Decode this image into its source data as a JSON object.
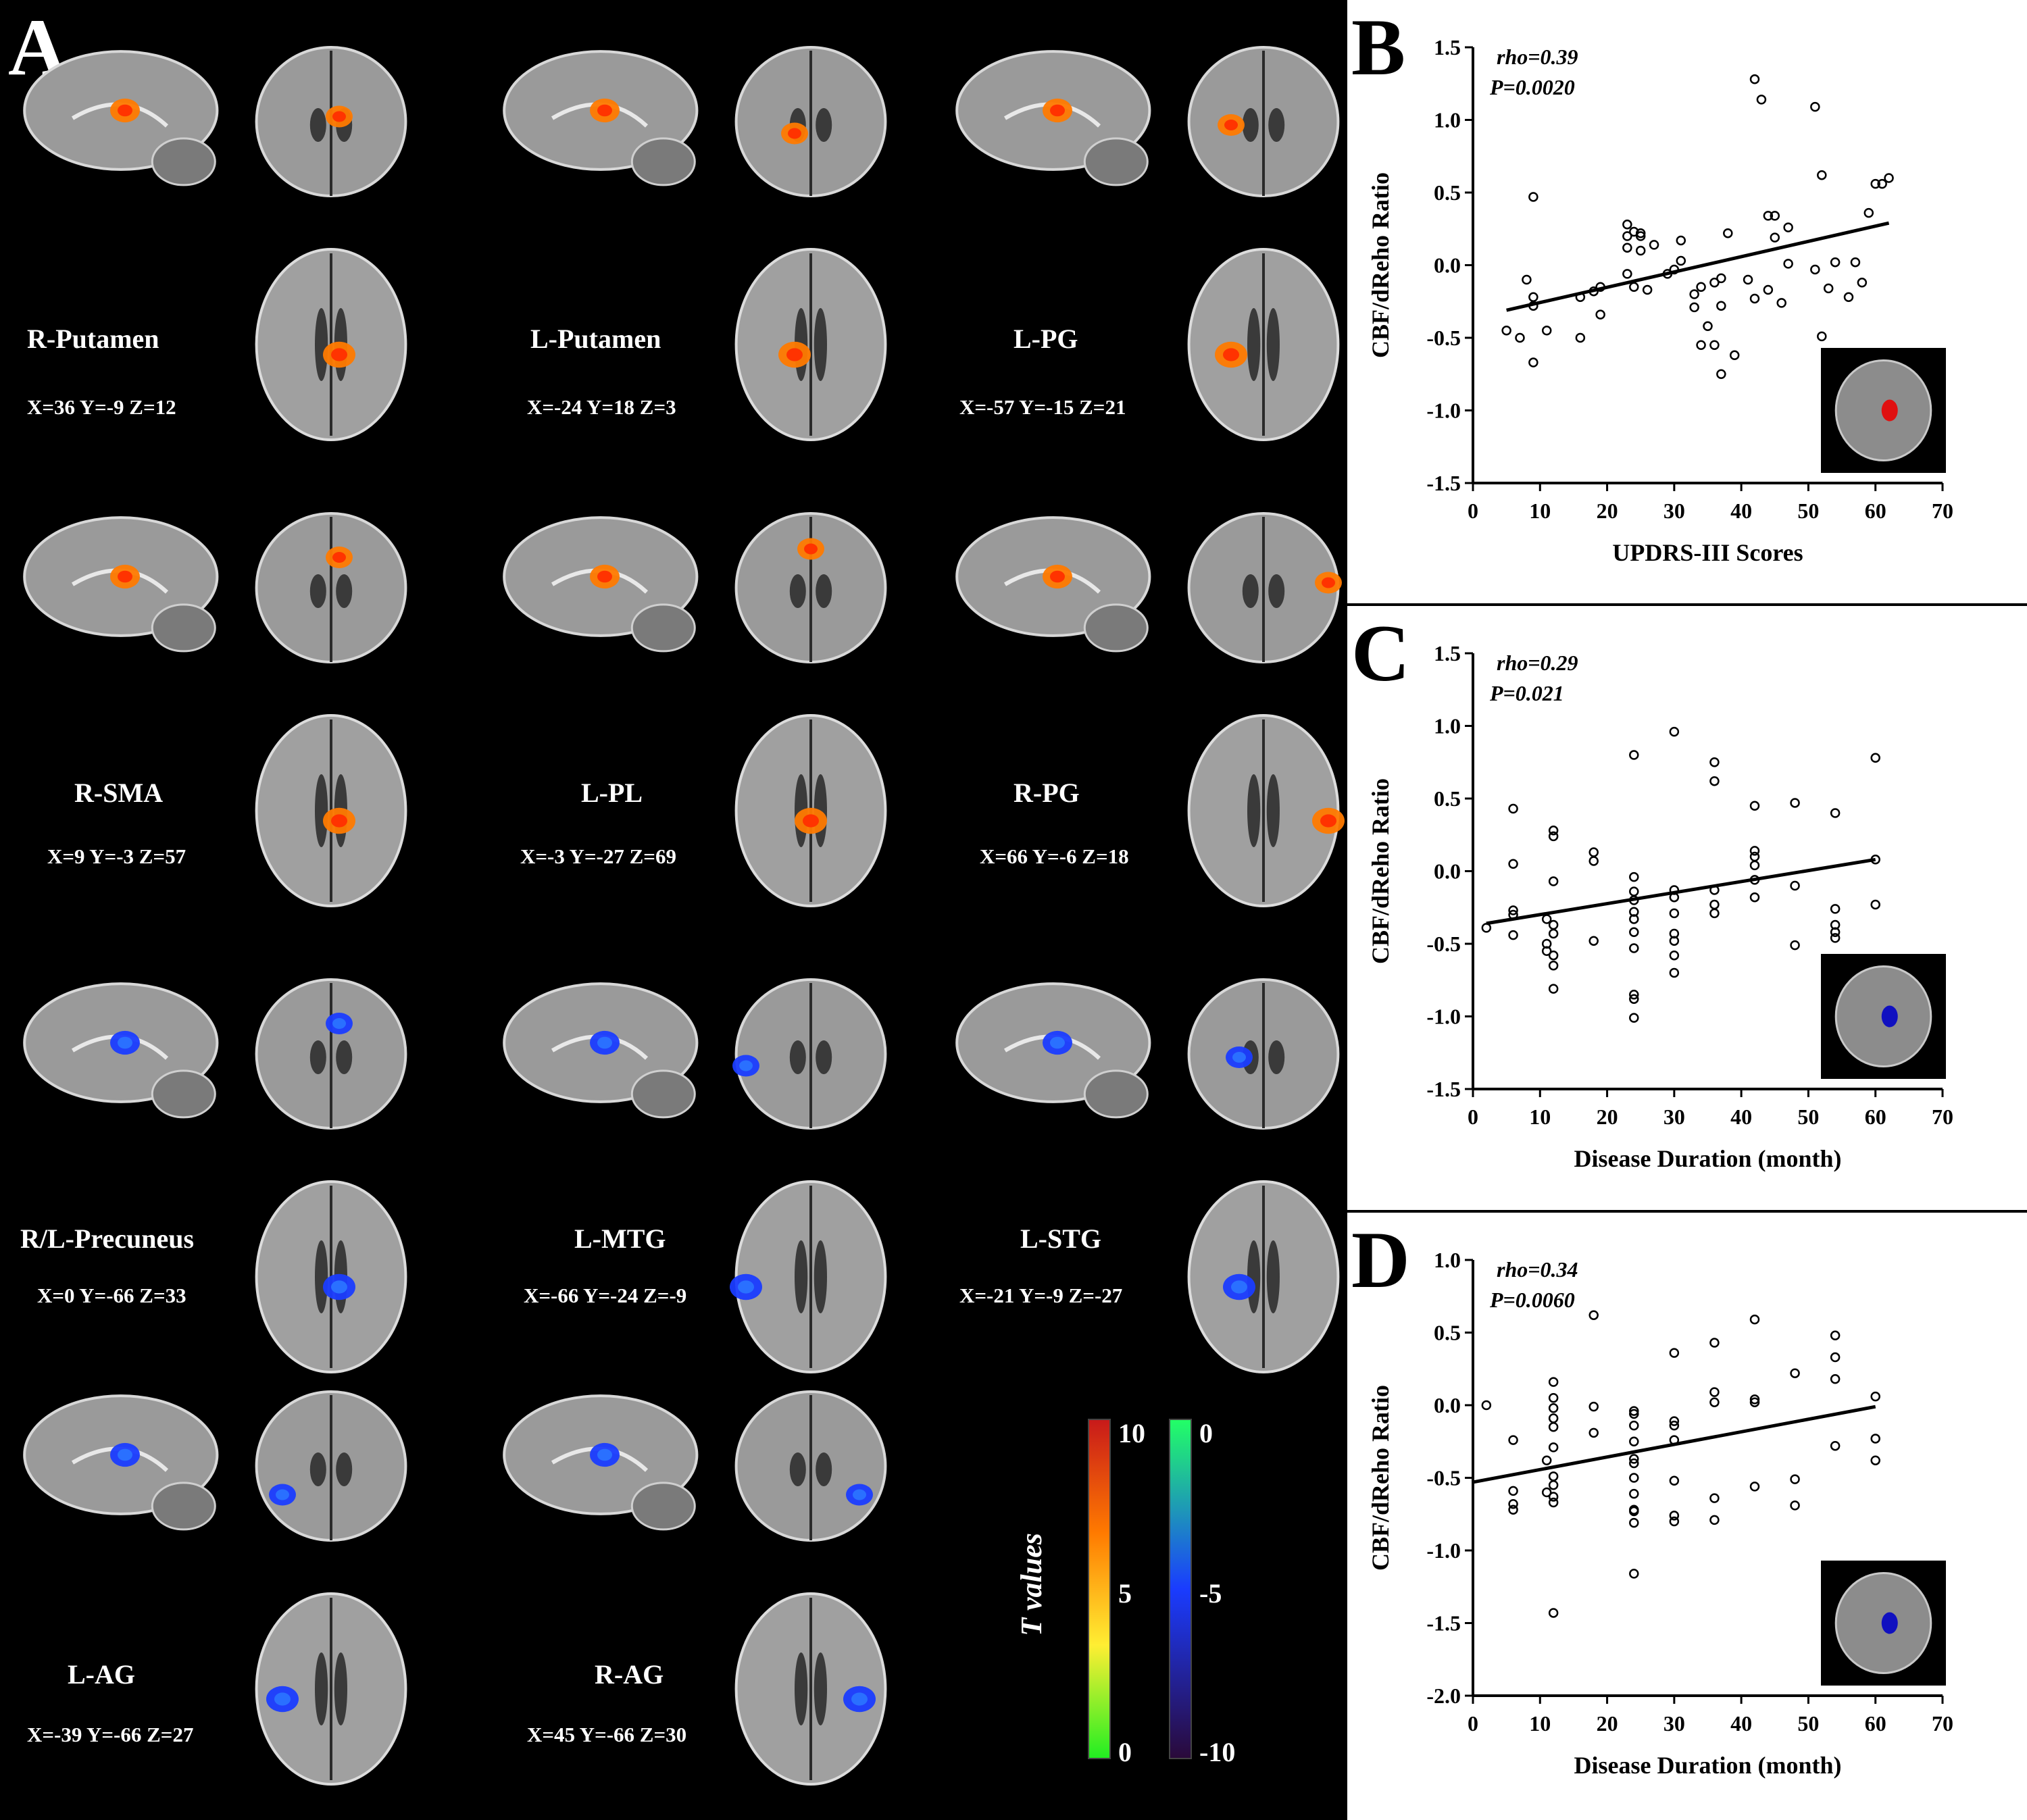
{
  "panelA": {
    "label": "A",
    "regions": [
      {
        "name": "R-Putamen",
        "coords": "X=36 Y=-9 Z=12",
        "kind": "pos"
      },
      {
        "name": "L-Putamen",
        "coords": "X=-24 Y=18 Z=3",
        "kind": "pos"
      },
      {
        "name": "L-PG",
        "coords": "X=-57 Y=-15 Z=21",
        "kind": "pos"
      },
      {
        "name": "R-SMA",
        "coords": "X=9 Y=-3 Z=57",
        "kind": "pos"
      },
      {
        "name": "L-PL",
        "coords": "X=-3 Y=-27 Z=69",
        "kind": "pos"
      },
      {
        "name": "R-PG",
        "coords": "X=66 Y=-6 Z=18",
        "kind": "pos"
      },
      {
        "name": "R/L-Precuneus",
        "coords": "X=0 Y=-66 Z=33",
        "kind": "neg"
      },
      {
        "name": "L-MTG",
        "coords": "X=-66 Y=-24 Z=-9",
        "kind": "neg"
      },
      {
        "name": "L-STG",
        "coords": "X=-21 Y=-9 Z=-27",
        "kind": "neg"
      },
      {
        "name": "L-AG",
        "coords": "X=-39 Y=-66 Z=27",
        "kind": "neg"
      },
      {
        "name": "R-AG",
        "coords": "X=45 Y=-66 Z=30",
        "kind": "neg"
      }
    ],
    "colorbar": {
      "title": "T values",
      "positive_ticks": [
        "10",
        "5",
        "0"
      ],
      "negative_ticks": [
        "0",
        "-5",
        "-10"
      ],
      "colors": {
        "pos_top": "#c81a1a",
        "pos_mid": "#ff7a00",
        "pos_low": "#ffee33",
        "pos_bottom": "#22ee22",
        "neg_top": "#22ff66",
        "neg_mid": "#1a3cff",
        "neg_bottom": "#2a0a3a"
      }
    }
  },
  "chart_data": [
    {
      "label": "B",
      "type": "scatter",
      "stats": {
        "rho": "rho=0.39",
        "p": "P=0.0020"
      },
      "xlabel": "UPDRS-III Scores",
      "ylabel": "CBF/dReho Ratio",
      "xlim": [
        0,
        70
      ],
      "ylim": [
        -1.5,
        1.5
      ],
      "xticks": [
        0,
        10,
        20,
        30,
        40,
        50,
        60,
        70
      ],
      "yticks": [
        -1.5,
        -1.0,
        -0.5,
        0.0,
        0.5,
        1.0,
        1.5
      ],
      "fit": {
        "x": [
          5,
          62
        ],
        "y": [
          -0.31,
          0.29
        ]
      },
      "inset_color": "#e01010",
      "points": [
        [
          5,
          -0.45
        ],
        [
          7,
          -0.5
        ],
        [
          8,
          -0.1
        ],
        [
          9,
          -0.28
        ],
        [
          9,
          -0.22
        ],
        [
          9,
          -0.67
        ],
        [
          9,
          0.47
        ],
        [
          11,
          -0.45
        ],
        [
          16,
          -0.22
        ],
        [
          16,
          -0.5
        ],
        [
          18,
          -0.18
        ],
        [
          19,
          -0.15
        ],
        [
          19,
          -0.34
        ],
        [
          23,
          0.28
        ],
        [
          23,
          0.2
        ],
        [
          23,
          0.12
        ],
        [
          23,
          -0.06
        ],
        [
          24,
          0.23
        ],
        [
          24,
          -0.15
        ],
        [
          25,
          0.1
        ],
        [
          25,
          0.2
        ],
        [
          25,
          0.22
        ],
        [
          26,
          -0.17
        ],
        [
          27,
          0.14
        ],
        [
          29,
          -0.06
        ],
        [
          30,
          -0.03
        ],
        [
          31,
          0.17
        ],
        [
          31,
          0.03
        ],
        [
          33,
          -0.2
        ],
        [
          33,
          -0.29
        ],
        [
          34,
          -0.55
        ],
        [
          34,
          -0.15
        ],
        [
          35,
          -0.42
        ],
        [
          36,
          -0.12
        ],
        [
          36,
          -0.55
        ],
        [
          37,
          -0.09
        ],
        [
          37,
          -0.75
        ],
        [
          37,
          -0.28
        ],
        [
          38,
          0.22
        ],
        [
          39,
          -0.62
        ],
        [
          41,
          -0.1
        ],
        [
          42,
          1.28
        ],
        [
          42,
          -0.23
        ],
        [
          43,
          1.14
        ],
        [
          44,
          -0.17
        ],
        [
          44,
          0.34
        ],
        [
          45,
          0.34
        ],
        [
          45,
          0.19
        ],
        [
          46,
          -0.26
        ],
        [
          47,
          0.26
        ],
        [
          47,
          0.01
        ],
        [
          51,
          1.09
        ],
        [
          51,
          -0.03
        ],
        [
          52,
          0.62
        ],
        [
          52,
          -0.49
        ],
        [
          53,
          -0.16
        ],
        [
          54,
          0.02
        ],
        [
          56,
          -0.22
        ],
        [
          57,
          0.02
        ],
        [
          58,
          -0.12
        ],
        [
          59,
          0.36
        ],
        [
          60,
          0.56
        ],
        [
          61,
          0.56
        ],
        [
          62,
          0.6
        ]
      ]
    },
    {
      "label": "C",
      "type": "scatter",
      "stats": {
        "rho": "rho=0.29",
        "p": "P=0.021"
      },
      "xlabel": "Disease Duration (month)",
      "ylabel": "CBF/dReho Ratio",
      "xlim": [
        0,
        70
      ],
      "ylim": [
        -1.5,
        1.5
      ],
      "xticks": [
        0,
        10,
        20,
        30,
        40,
        50,
        60,
        70
      ],
      "yticks": [
        -1.5,
        -1.0,
        -0.5,
        0.0,
        0.5,
        1.0,
        1.5
      ],
      "fit": {
        "x": [
          2,
          60
        ],
        "y": [
          -0.36,
          0.08
        ]
      },
      "inset_color": "#1010c0",
      "points": [
        [
          2,
          -0.39
        ],
        [
          6,
          0.43
        ],
        [
          6,
          0.05
        ],
        [
          6,
          -0.27
        ],
        [
          6,
          -0.3
        ],
        [
          6,
          -0.44
        ],
        [
          11,
          -0.33
        ],
        [
          11,
          -0.5
        ],
        [
          11,
          -0.55
        ],
        [
          12,
          0.28
        ],
        [
          12,
          0.24
        ],
        [
          12,
          -0.07
        ],
        [
          12,
          -0.37
        ],
        [
          12,
          -0.43
        ],
        [
          12,
          -0.58
        ],
        [
          12,
          -0.65
        ],
        [
          12,
          -0.81
        ],
        [
          18,
          0.13
        ],
        [
          18,
          0.07
        ],
        [
          18,
          -0.48
        ],
        [
          24,
          0.8
        ],
        [
          24,
          -0.04
        ],
        [
          24,
          -0.14
        ],
        [
          24,
          -0.2
        ],
        [
          24,
          -0.28
        ],
        [
          24,
          -0.33
        ],
        [
          24,
          -0.42
        ],
        [
          24,
          -0.53
        ],
        [
          24,
          -0.85
        ],
        [
          24,
          -0.88
        ],
        [
          24,
          -1.01
        ],
        [
          30,
          0.96
        ],
        [
          30,
          -0.13
        ],
        [
          30,
          -0.18
        ],
        [
          30,
          -0.29
        ],
        [
          30,
          -0.43
        ],
        [
          30,
          -0.48
        ],
        [
          30,
          -0.58
        ],
        [
          30,
          -0.7
        ],
        [
          36,
          0.75
        ],
        [
          36,
          0.62
        ],
        [
          36,
          -0.13
        ],
        [
          36,
          -0.23
        ],
        [
          36,
          -0.29
        ],
        [
          42,
          0.45
        ],
        [
          42,
          0.14
        ],
        [
          42,
          0.1
        ],
        [
          42,
          0.04
        ],
        [
          42,
          -0.06
        ],
        [
          42,
          -0.18
        ],
        [
          48,
          0.47
        ],
        [
          48,
          -0.1
        ],
        [
          48,
          -0.51
        ],
        [
          54,
          0.4
        ],
        [
          54,
          -0.26
        ],
        [
          54,
          -0.37
        ],
        [
          54,
          -0.42
        ],
        [
          54,
          -0.46
        ],
        [
          60,
          0.78
        ],
        [
          60,
          0.08
        ],
        [
          60,
          -0.23
        ]
      ]
    },
    {
      "label": "D",
      "type": "scatter",
      "stats": {
        "rho": "rho=0.34",
        "p": "P=0.0060"
      },
      "xlabel": "Disease Duration (month)",
      "ylabel": "CBF/dReho Ratio",
      "xlim": [
        0,
        70
      ],
      "ylim": [
        -2.0,
        1.0
      ],
      "xticks": [
        0,
        10,
        20,
        30,
        40,
        50,
        60,
        70
      ],
      "yticks": [
        -2.0,
        -1.5,
        -1.0,
        -0.5,
        0.0,
        0.5,
        1.0
      ],
      "fit": {
        "x": [
          0,
          60
        ],
        "y": [
          -0.53,
          -0.01
        ]
      },
      "inset_color": "#1010c0",
      "points": [
        [
          2,
          0.0
        ],
        [
          6,
          -0.24
        ],
        [
          6,
          -0.59
        ],
        [
          6,
          -0.68
        ],
        [
          6,
          -0.72
        ],
        [
          11,
          -0.38
        ],
        [
          11,
          -0.6
        ],
        [
          12,
          0.16
        ],
        [
          12,
          0.05
        ],
        [
          12,
          -0.02
        ],
        [
          12,
          -0.09
        ],
        [
          12,
          -0.15
        ],
        [
          12,
          -0.29
        ],
        [
          12,
          -0.49
        ],
        [
          12,
          -0.55
        ],
        [
          12,
          -0.63
        ],
        [
          12,
          -0.67
        ],
        [
          12,
          -1.43
        ],
        [
          18,
          0.62
        ],
        [
          18,
          -0.01
        ],
        [
          18,
          -0.19
        ],
        [
          24,
          -0.04
        ],
        [
          24,
          -0.06
        ],
        [
          24,
          -0.14
        ],
        [
          24,
          -0.25
        ],
        [
          24,
          -0.37
        ],
        [
          24,
          -0.4
        ],
        [
          24,
          -0.5
        ],
        [
          24,
          -0.61
        ],
        [
          24,
          -0.72
        ],
        [
          24,
          -0.73
        ],
        [
          24,
          -0.81
        ],
        [
          24,
          -1.16
        ],
        [
          30,
          0.36
        ],
        [
          30,
          -0.11
        ],
        [
          30,
          -0.14
        ],
        [
          30,
          -0.24
        ],
        [
          30,
          -0.52
        ],
        [
          30,
          -0.76
        ],
        [
          30,
          -0.8
        ],
        [
          36,
          0.43
        ],
        [
          36,
          0.09
        ],
        [
          36,
          0.02
        ],
        [
          36,
          -0.64
        ],
        [
          36,
          -0.79
        ],
        [
          42,
          0.59
        ],
        [
          42,
          0.04
        ],
        [
          42,
          0.02
        ],
        [
          42,
          -0.56
        ],
        [
          48,
          0.22
        ],
        [
          48,
          -0.51
        ],
        [
          48,
          -0.69
        ],
        [
          54,
          0.48
        ],
        [
          54,
          0.33
        ],
        [
          54,
          0.18
        ],
        [
          54,
          -0.28
        ],
        [
          60,
          0.06
        ],
        [
          60,
          -0.23
        ],
        [
          60,
          -0.38
        ]
      ]
    }
  ]
}
